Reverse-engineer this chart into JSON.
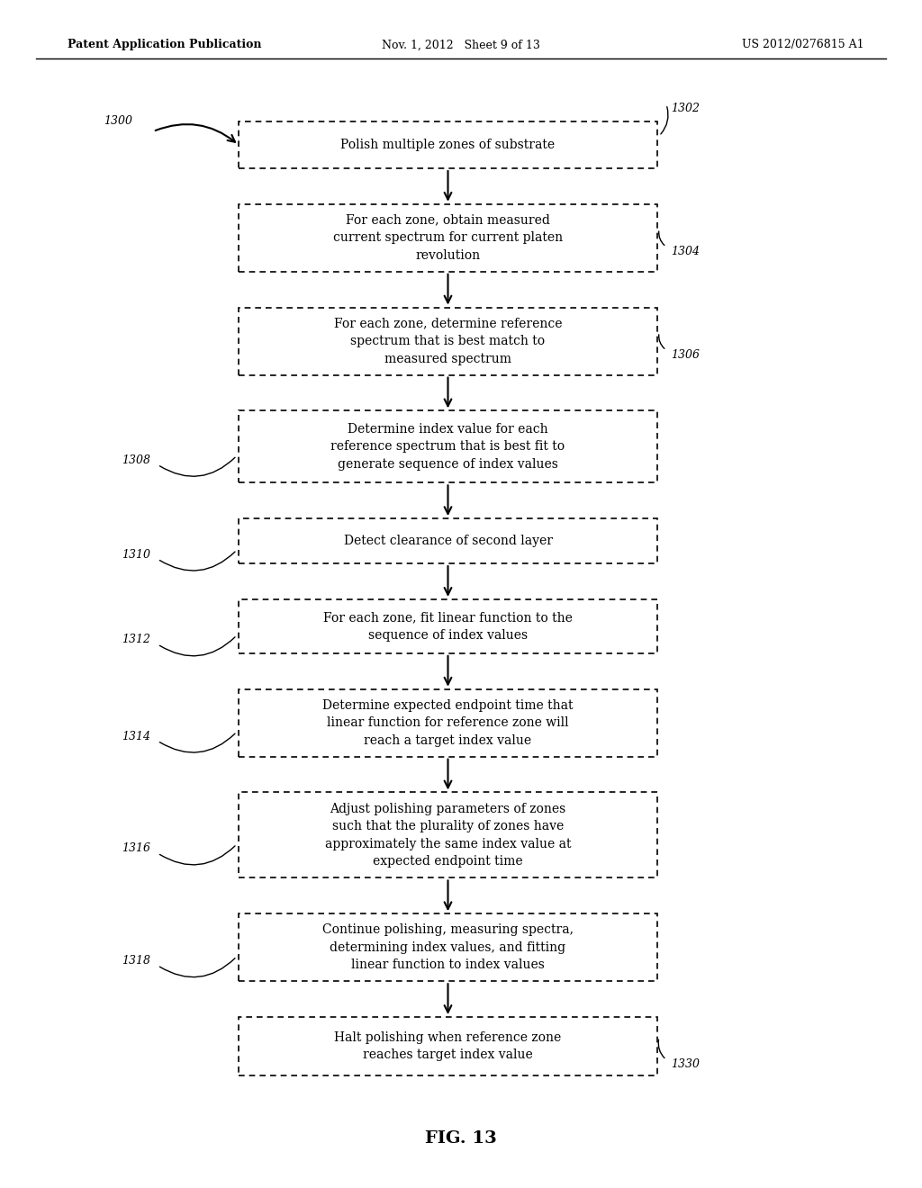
{
  "header_left": "Patent Application Publication",
  "header_mid": "Nov. 1, 2012   Sheet 9 of 13",
  "header_right": "US 2012/0276815 A1",
  "fig_label": "FIG. 13",
  "background_color": "#ffffff",
  "boxes": [
    {
      "id": "1302",
      "lines": [
        "Polish multiple zones of substrate"
      ],
      "label": "1302",
      "label_side": "right"
    },
    {
      "id": "1304",
      "lines": [
        "For each zone, obtain measured",
        "current spectrum for current platen",
        "revolution"
      ],
      "label": "1304",
      "label_side": "right"
    },
    {
      "id": "1306",
      "lines": [
        "For each zone, determine reference",
        "spectrum that is best match to",
        "measured spectrum"
      ],
      "label": "1306",
      "label_side": "right"
    },
    {
      "id": "1308",
      "lines": [
        "Determine index value for each",
        "reference spectrum that is best fit to",
        "generate sequence of index values"
      ],
      "label": "1308",
      "label_side": "left"
    },
    {
      "id": "1310",
      "lines": [
        "Detect clearance of second layer"
      ],
      "label": "1310",
      "label_side": "left"
    },
    {
      "id": "1312",
      "lines": [
        "For each zone, fit linear function to the",
        "sequence of index values"
      ],
      "label": "1312",
      "label_side": "left"
    },
    {
      "id": "1314",
      "lines": [
        "Determine expected endpoint time that",
        "linear function for reference zone will",
        "reach a target index value"
      ],
      "label": "1314",
      "label_side": "left"
    },
    {
      "id": "1316",
      "lines": [
        "Adjust polishing parameters of zones",
        "such that the plurality of zones have",
        "approximately the same index value at",
        "expected endpoint time"
      ],
      "label": "1316",
      "label_side": "left"
    },
    {
      "id": "1318",
      "lines": [
        "Continue polishing, measuring spectra,",
        "determining index values, and fitting",
        "linear function to index values"
      ],
      "label": "1318",
      "label_side": "left"
    },
    {
      "id": "1330",
      "lines": [
        "Halt polishing when reference zone",
        "reaches target index value"
      ],
      "label": "1330",
      "label_side": "right"
    }
  ],
  "font_size_box": 10,
  "font_size_label": 9,
  "font_size_header_bold": 9,
  "font_size_header": 9,
  "font_size_fig": 14
}
